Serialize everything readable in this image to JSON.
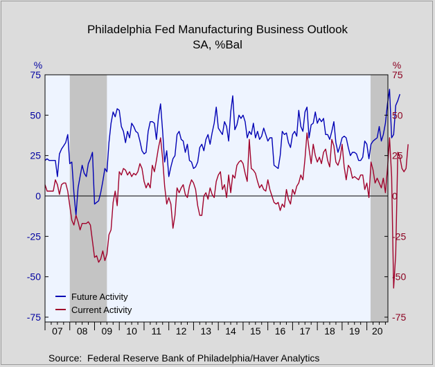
{
  "chart_data": {
    "type": "line",
    "title": "Philadelphia Fed Manufacturing Business Outlook",
    "subtitle": "SA, %Bal",
    "left_unit": "%",
    "right_unit": "%",
    "ylim": [
      -78,
      75
    ],
    "yticks": [
      75,
      50,
      25,
      0,
      -25,
      -50,
      -75
    ],
    "x_tick_labels": [
      "07",
      "08",
      "09",
      "10",
      "11",
      "12",
      "13",
      "14",
      "15",
      "16",
      "17",
      "18",
      "19",
      "20"
    ],
    "x_start": 2007.0,
    "x_end": 2020.85,
    "recessions": [
      [
        2008.0,
        2009.5
      ],
      [
        2020.15,
        2020.85
      ]
    ],
    "legend_position": "bottom-left",
    "colors": {
      "future": "#0000b4",
      "current": "#a0002a",
      "left_axis": "#0000a0",
      "right_axis": "#8b0020",
      "plot_bg": "#eef4ff",
      "recession": "#c4c4c4"
    },
    "series": [
      {
        "name": "Future Activity",
        "key": "future",
        "start": 2007.0,
        "values": [
          22,
          23,
          22,
          22,
          22,
          22,
          12,
          26,
          29,
          31,
          33,
          38,
          20,
          21,
          2,
          -12,
          5,
          12,
          19,
          14,
          12,
          20,
          23,
          27,
          -5,
          -4,
          -3,
          2,
          9,
          17,
          15,
          33,
          45,
          52,
          49,
          54,
          53,
          43,
          40,
          33,
          40,
          36,
          45,
          43,
          40,
          39,
          34,
          28,
          26,
          27,
          40,
          46,
          46,
          45,
          35,
          49,
          57,
          40,
          21,
          28,
          12,
          18,
          23,
          25,
          38,
          40,
          35,
          34,
          27,
          32,
          22,
          21,
          17,
          18,
          21,
          30,
          32,
          28,
          35,
          38,
          32,
          39,
          45,
          55,
          42,
          40,
          38,
          46,
          43,
          34,
          52,
          62,
          41,
          44,
          50,
          48,
          50,
          46,
          36,
          40,
          38,
          45,
          36,
          40,
          35,
          37,
          42,
          38,
          34,
          36,
          36,
          19,
          18,
          17,
          25,
          40,
          38,
          39,
          33,
          30,
          38,
          40,
          37,
          53,
          43,
          40,
          52,
          55,
          36,
          44,
          45,
          52,
          45,
          48,
          46,
          48,
          38,
          38,
          35,
          40,
          46,
          33,
          27,
          31,
          36,
          37,
          36,
          30,
          25,
          27,
          27,
          26,
          22,
          22,
          24,
          34,
          32,
          23,
          32,
          34,
          35,
          36,
          43,
          34,
          38,
          45,
          57,
          66,
          36,
          38,
          56,
          59,
          63
        ]
      },
      {
        "name": "Current Activity",
        "key": "current",
        "start": 2007.0,
        "values": [
          7,
          3,
          3,
          3,
          3,
          10,
          7,
          1,
          7,
          8,
          8,
          3,
          -6,
          -15,
          -18,
          -12,
          -16,
          -21,
          -17,
          -17,
          -17,
          -16,
          -18,
          -28,
          -38,
          -37,
          -41,
          -39,
          -34,
          -40,
          -36,
          -24,
          -21,
          -4,
          3,
          -6,
          15,
          13,
          17,
          16,
          13,
          15,
          12,
          14,
          13,
          15,
          20,
          17,
          9,
          5,
          8,
          5,
          19,
          15,
          22,
          30,
          36,
          23,
          6,
          -5,
          -1,
          -5,
          -20,
          -12,
          5,
          2,
          5,
          7,
          1,
          -1,
          6,
          10,
          8,
          4,
          -6,
          -12,
          -12,
          0,
          2,
          -2,
          5,
          1,
          -1,
          9,
          13,
          15,
          4,
          7,
          -1,
          13,
          2,
          13,
          11,
          19,
          21,
          22,
          20,
          14,
          9,
          35,
          17,
          16,
          14,
          9,
          5,
          7,
          4,
          3,
          10,
          4,
          0,
          -4,
          -5,
          -4,
          -9,
          -5,
          -7,
          4,
          -2,
          -5,
          4,
          1,
          6,
          8,
          13,
          10,
          23,
          39,
          29,
          20,
          32,
          25,
          21,
          24,
          20,
          27,
          29,
          22,
          18,
          35,
          31,
          21,
          19,
          23,
          32,
          18,
          10,
          19,
          17,
          11,
          12,
          11,
          10,
          13,
          13,
          4,
          8,
          -1,
          21,
          16,
          8,
          11,
          8,
          5,
          11,
          2,
          17,
          36,
          12,
          -57,
          -36,
          27,
          24,
          17,
          15,
          17,
          32
        ]
      }
    ]
  },
  "source_label": "Source:",
  "source_text": "Federal Reserve Bank of Philadelphia/Haver Analytics"
}
